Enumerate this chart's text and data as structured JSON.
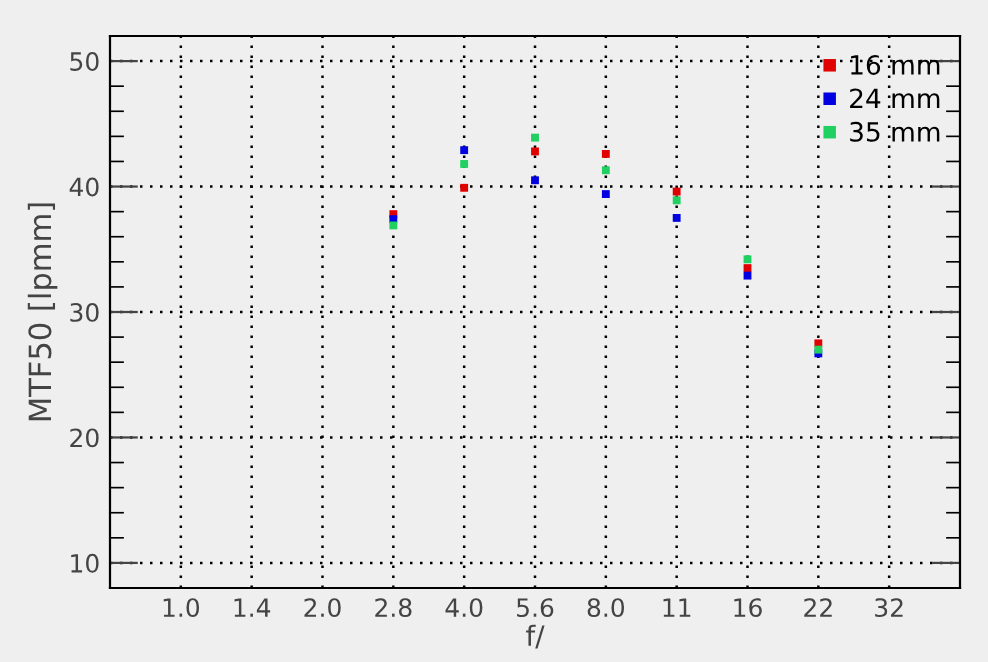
{
  "chart_data": {
    "type": "scatter",
    "xlabel": "f/",
    "ylabel": "MTF50 [lpmm]",
    "categories": [
      "1.0",
      "1.4",
      "2.0",
      "2.8",
      "4.0",
      "5.6",
      "8.0",
      "11",
      "16",
      "22",
      "32"
    ],
    "series": [
      {
        "name": "16 mm",
        "color": "#e00000",
        "values": [
          null,
          null,
          null,
          37.8,
          39.9,
          42.8,
          42.6,
          39.6,
          33.5,
          27.5,
          null
        ]
      },
      {
        "name": "24 mm",
        "color": "#0000e0",
        "values": [
          null,
          null,
          null,
          37.4,
          42.9,
          40.5,
          39.4,
          37.5,
          32.9,
          26.7,
          null
        ]
      },
      {
        "name": "35 mm",
        "color": "#20d060",
        "values": [
          null,
          null,
          null,
          36.9,
          41.8,
          43.9,
          41.3,
          38.9,
          34.2,
          27.0,
          null
        ]
      }
    ],
    "ylim": [
      8,
      52
    ],
    "yticks": [
      10,
      {
        "value": 12,
        "label": null
      },
      {
        "value": 14,
        "label": null
      },
      {
        "value": 16,
        "label": null
      },
      {
        "value": 18,
        "label": null
      },
      20,
      {
        "value": 22,
        "label": null
      },
      {
        "value": 24,
        "label": null
      },
      {
        "value": 26,
        "label": null
      },
      {
        "value": 28,
        "label": null
      },
      30,
      {
        "value": 32,
        "label": null
      },
      {
        "value": 34,
        "label": null
      },
      {
        "value": 36,
        "label": null
      },
      {
        "value": 38,
        "label": null
      },
      40,
      {
        "value": 42,
        "label": null
      },
      {
        "value": 44,
        "label": null
      },
      {
        "value": 46,
        "label": null
      },
      {
        "value": 48,
        "label": null
      },
      50
    ],
    "grid": true,
    "legend": "top right",
    "marker": "square"
  }
}
